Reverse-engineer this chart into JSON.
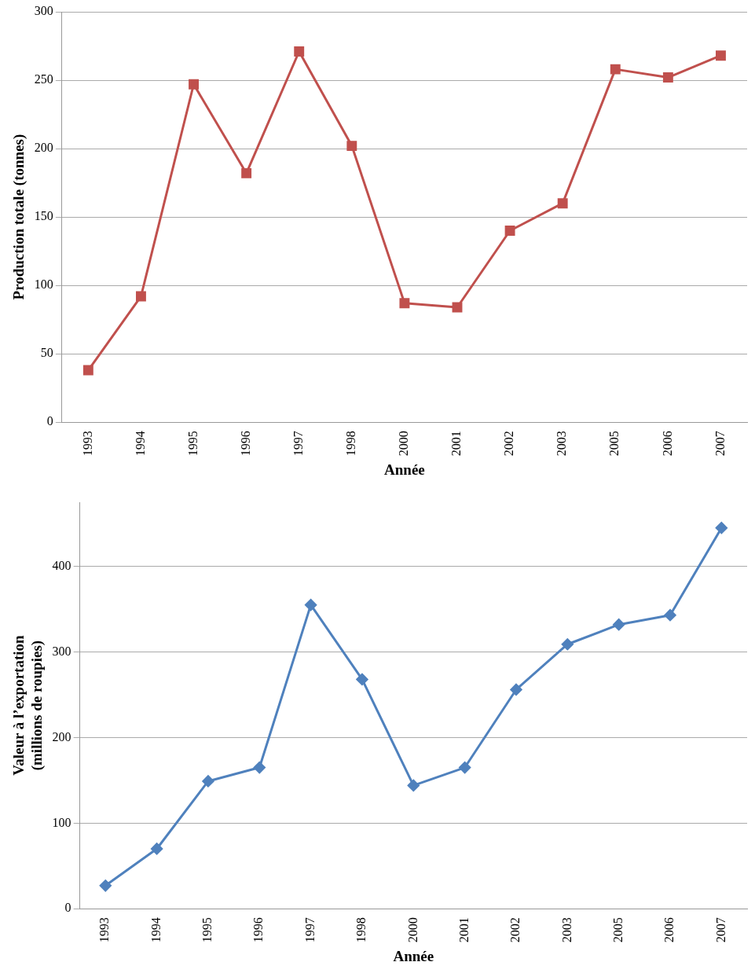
{
  "chart_data": [
    {
      "type": "line",
      "xlabel": "Année",
      "ylabel": "Production totale (tonnes)",
      "categories": [
        "1993",
        "1994",
        "1995",
        "1996",
        "1997",
        "1998",
        "2000",
        "2001",
        "2002",
        "2003",
        "2005",
        "2006",
        "2007"
      ],
      "series": [
        {
          "color": "#c0504d",
          "values": [
            38,
            92,
            247,
            182,
            271,
            202,
            87,
            84,
            140,
            160,
            258,
            252,
            268
          ]
        }
      ],
      "ylim": [
        0,
        300
      ],
      "yticks": [
        0,
        50,
        100,
        150,
        200,
        250,
        300
      ],
      "grid": "y",
      "marker": "square",
      "legend": false
    },
    {
      "type": "line",
      "xlabel": "Année",
      "ylabel": "Valeur à l’exportation\n(millions de roupies)",
      "categories": [
        "1993",
        "1994",
        "1995",
        "1996",
        "1997",
        "1998",
        "2000",
        "2001",
        "2002",
        "2003",
        "2005",
        "2006",
        "2007"
      ],
      "series": [
        {
          "color": "#4f81bd",
          "values": [
            27,
            70,
            149,
            165,
            355,
            268,
            144,
            165,
            256,
            309,
            332,
            343,
            445
          ]
        }
      ],
      "ylim": [
        0,
        475
      ],
      "yticks": [
        0,
        100,
        200,
        300,
        400
      ],
      "grid": "y",
      "marker": "diamond",
      "legend": false
    }
  ]
}
